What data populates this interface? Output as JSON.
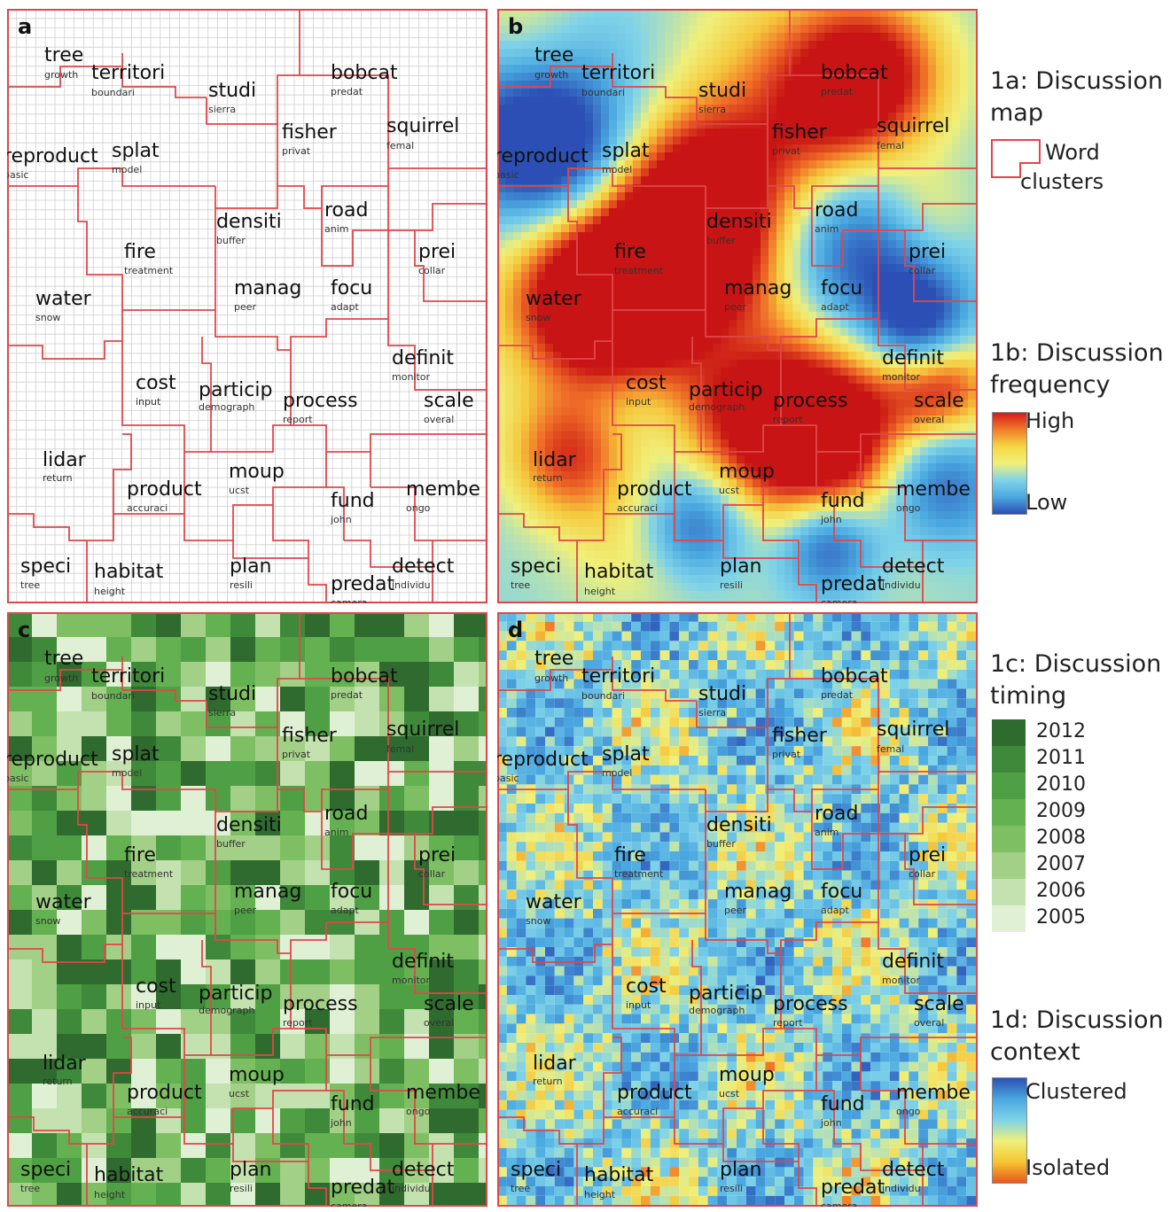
{
  "panels": [
    {
      "letter": "a",
      "style": "grid"
    },
    {
      "letter": "b",
      "style": "heat"
    },
    {
      "letter": "c",
      "style": "green"
    },
    {
      "letter": "d",
      "style": "pixel"
    }
  ],
  "clusters": [
    {
      "word": "tree",
      "sub": "growth"
    },
    {
      "word": "territori",
      "sub": "boundari"
    },
    {
      "word": "studi",
      "sub": "sierra"
    },
    {
      "word": "bobcat",
      "sub": "predat"
    },
    {
      "word": "fisher",
      "sub": "privat"
    },
    {
      "word": "squirrel",
      "sub": "femal"
    },
    {
      "word": "reproduct",
      "sub": "basic"
    },
    {
      "word": "splat",
      "sub": "model"
    },
    {
      "word": "densiti",
      "sub": "buffer"
    },
    {
      "word": "road",
      "sub": "anim"
    },
    {
      "word": "fire",
      "sub": "treatment"
    },
    {
      "word": "prei",
      "sub": "collar"
    },
    {
      "word": "water",
      "sub": "snow"
    },
    {
      "word": "manag",
      "sub": "peer"
    },
    {
      "word": "focu",
      "sub": "adapt"
    },
    {
      "word": "definit",
      "sub": "monitor"
    },
    {
      "word": "cost",
      "sub": "input"
    },
    {
      "word": "particip",
      "sub": "demograph"
    },
    {
      "word": "process",
      "sub": "report"
    },
    {
      "word": "scale",
      "sub": "overal"
    },
    {
      "word": "lidar",
      "sub": "return"
    },
    {
      "word": "moup",
      "sub": "ucst"
    },
    {
      "word": "product",
      "sub": "accuraci"
    },
    {
      "word": "fund",
      "sub": "john"
    },
    {
      "word": "membe",
      "sub": "ongo"
    },
    {
      "word": "speci",
      "sub": "tree"
    },
    {
      "word": "habitat",
      "sub": "height"
    },
    {
      "word": "plan",
      "sub": "resili"
    },
    {
      "word": "detect",
      "sub": "individu"
    },
    {
      "word": "predat",
      "sub": "camera"
    }
  ],
  "legend": {
    "a_title": "1a: Discussion map",
    "a_item": "Word clusters",
    "b_title": "1b: Discussion frequency",
    "b_high": "High",
    "b_low": "Low",
    "c_title": "1c: Discussion timing",
    "c_years": [
      "2012",
      "2011",
      "2010",
      "2009",
      "2008",
      "2007",
      "2006",
      "2005"
    ],
    "c_colors": [
      "#2f6b2e",
      "#3e8a3a",
      "#4fa044",
      "#63b150",
      "#7fbf63",
      "#a2d087",
      "#c4e2b0",
      "#e0f0d5"
    ],
    "d_title": "1d: Discussion context",
    "d_top": "Clustered",
    "d_bottom": "Isolated"
  },
  "colors": {
    "cluster_border": "#e0474a",
    "grid": "#cfcfcf"
  }
}
